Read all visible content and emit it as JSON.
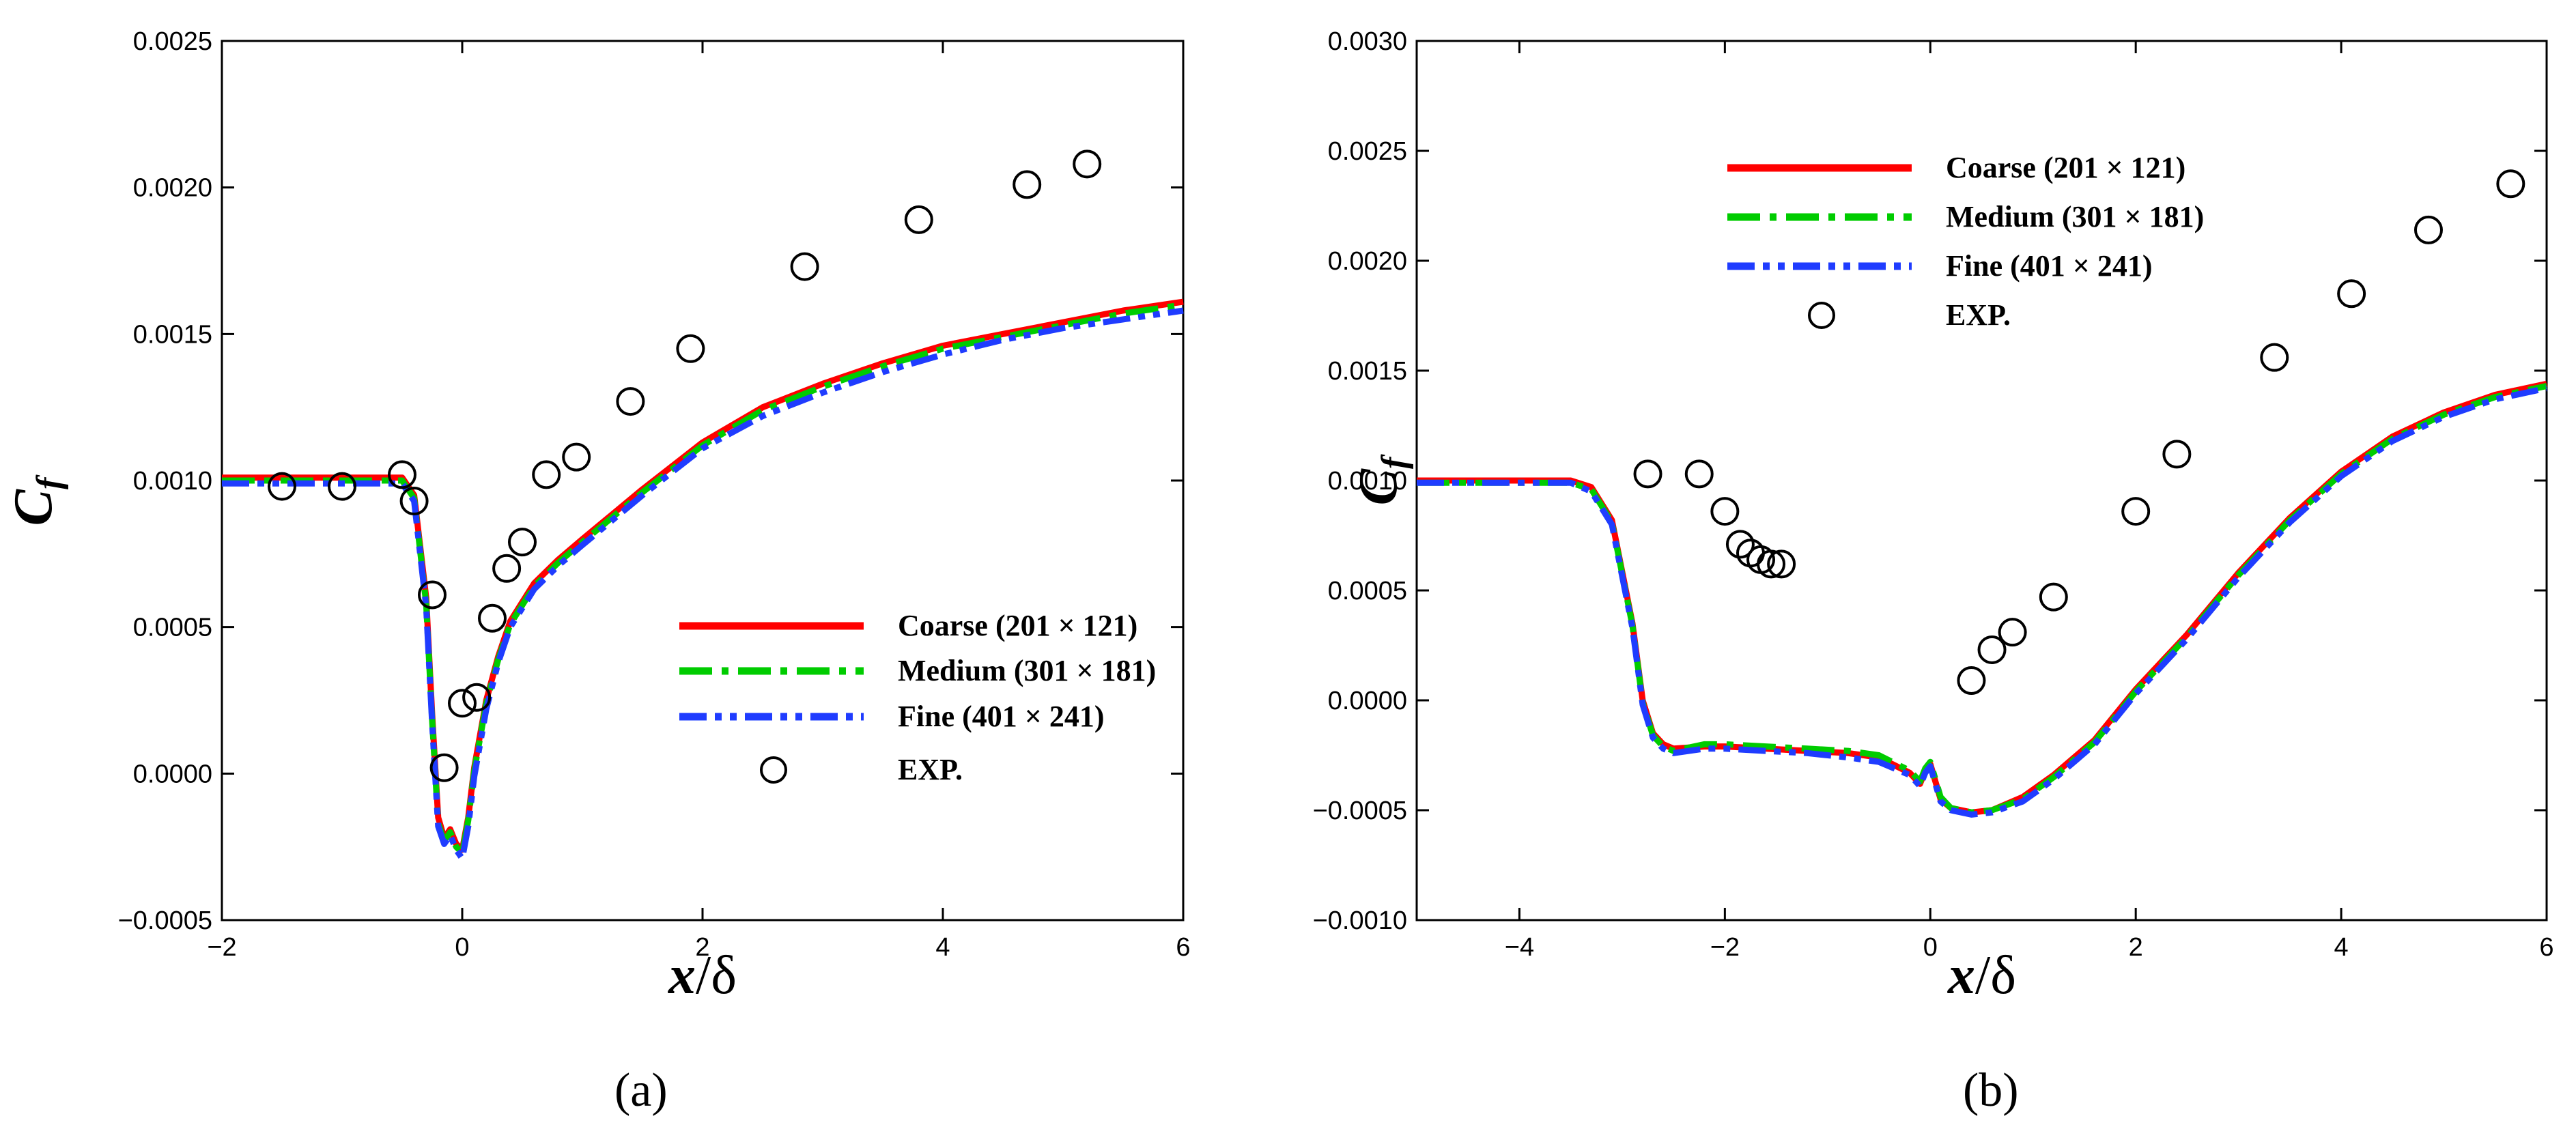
{
  "chart_data": [
    {
      "type": "line",
      "panel_label": "(a)",
      "xlabel": "x/δ",
      "ylabel": "Cf",
      "xlim": [
        -2,
        6
      ],
      "ylim": [
        -0.0005,
        0.0025
      ],
      "xticks": [
        -2,
        0,
        2,
        4,
        6
      ],
      "xtick_labels": [
        "−2",
        "0",
        "2",
        "4",
        "6"
      ],
      "yticks": [
        -0.0005,
        0,
        0.0005,
        0.001,
        0.0015,
        0.002,
        0.0025
      ],
      "ytick_labels": [
        "−0.0005",
        "0.0000",
        "0.0005",
        "0.0010",
        "0.0015",
        "0.0020",
        "0.0025"
      ],
      "legend_position": "center-right",
      "series": [
        {
          "name": "Coarse (201 × 121)",
          "style": "solid",
          "color": "#ff0000",
          "x": [
            -2,
            -0.5,
            -0.4,
            -0.3,
            -0.25,
            -0.2,
            -0.15,
            -0.1,
            -0.05,
            0,
            0.05,
            0.1,
            0.2,
            0.3,
            0.4,
            0.6,
            0.8,
            1.0,
            1.5,
            2.0,
            2.5,
            3.0,
            3.5,
            4.0,
            4.5,
            5.0,
            5.5,
            6.0
          ],
          "y": [
            0.00101,
            0.00101,
            0.00095,
            0.0006,
            0.0002,
            -0.00015,
            -0.00022,
            -0.00019,
            -0.00024,
            -0.00026,
            -0.00015,
            2e-05,
            0.00025,
            0.0004,
            0.00052,
            0.00065,
            0.00073,
            0.0008,
            0.00097,
            0.00113,
            0.00125,
            0.00133,
            0.0014,
            0.00146,
            0.0015,
            0.00154,
            0.00158,
            0.00161
          ]
        },
        {
          "name": "Medium (301 × 181)",
          "style": "dashdot",
          "color": "#00cc00",
          "x": [
            -2,
            -0.5,
            -0.4,
            -0.3,
            -0.25,
            -0.2,
            -0.15,
            -0.1,
            -0.05,
            0,
            0.05,
            0.1,
            0.2,
            0.3,
            0.4,
            0.6,
            0.8,
            1.0,
            1.5,
            2.0,
            2.5,
            3.0,
            3.5,
            4.0,
            4.5,
            5.0,
            5.5,
            6.0
          ],
          "y": [
            0.001,
            0.001,
            0.00094,
            0.00058,
            0.00018,
            -0.00017,
            -0.00023,
            -0.0002,
            -0.00025,
            -0.00027,
            -0.00016,
            1e-05,
            0.00024,
            0.00039,
            0.00051,
            0.00064,
            0.00072,
            0.00079,
            0.00096,
            0.00112,
            0.00124,
            0.00132,
            0.00139,
            0.00145,
            0.00149,
            0.00153,
            0.00157,
            0.0016
          ]
        },
        {
          "name": "Fine (401 × 241)",
          "style": "dashdotdot",
          "color": "#1f3cff",
          "x": [
            -2,
            -0.5,
            -0.4,
            -0.3,
            -0.25,
            -0.2,
            -0.15,
            -0.1,
            -0.05,
            0,
            0.05,
            0.1,
            0.2,
            0.3,
            0.4,
            0.6,
            0.8,
            1.0,
            1.5,
            2.0,
            2.5,
            3.0,
            3.5,
            4.0,
            4.5,
            5.0,
            5.5,
            6.0
          ],
          "y": [
            0.00099,
            0.00099,
            0.00093,
            0.00057,
            0.00017,
            -0.00018,
            -0.00024,
            -0.00021,
            -0.00026,
            -0.00029,
            -0.00018,
            -1e-05,
            0.00022,
            0.00038,
            0.0005,
            0.00063,
            0.00071,
            0.00078,
            0.00095,
            0.00111,
            0.00122,
            0.0013,
            0.00137,
            0.00143,
            0.00148,
            0.00152,
            0.00155,
            0.00158
          ]
        },
        {
          "name": "EXP.",
          "style": "markers",
          "color": "#000000",
          "x": [
            -1.5,
            -1.0,
            -0.5,
            -0.4,
            -0.25,
            -0.15,
            0.0,
            0.12,
            0.25,
            0.37,
            0.5,
            0.7,
            0.95,
            1.4,
            1.9,
            2.85,
            3.8,
            4.7,
            5.2
          ],
          "y": [
            0.00098,
            0.00098,
            0.00102,
            0.00093,
            0.00061,
            2e-05,
            0.00024,
            0.00026,
            0.00053,
            0.0007,
            0.00079,
            0.00102,
            0.00108,
            0.00127,
            0.00145,
            0.00173,
            0.00189,
            0.00201,
            0.00208
          ]
        }
      ]
    },
    {
      "type": "line",
      "panel_label": "(b)",
      "xlabel": "x/δ",
      "ylabel": "Cf",
      "xlim": [
        -5,
        6
      ],
      "ylim": [
        -0.001,
        0.003
      ],
      "xticks": [
        -4,
        -2,
        0,
        2,
        4,
        6
      ],
      "xtick_labels": [
        "−4",
        "−2",
        "0",
        "2",
        "4",
        "6"
      ],
      "yticks": [
        -0.001,
        -0.0005,
        0,
        0.0005,
        0.001,
        0.0015,
        0.002,
        0.0025,
        0.003
      ],
      "ytick_labels": [
        "−0.0010",
        "−0.0005",
        "0.0000",
        "0.0005",
        "0.0010",
        "0.0015",
        "0.0020",
        "0.0025",
        "0.0030"
      ],
      "legend_position": "top-left",
      "series": [
        {
          "name": "Coarse (201 × 121)",
          "style": "solid",
          "color": "#ff0000",
          "x": [
            -5,
            -3.5,
            -3.3,
            -3.1,
            -2.9,
            -2.8,
            -2.7,
            -2.6,
            -2.5,
            -2.2,
            -2.0,
            -1.6,
            -1.2,
            -0.8,
            -0.5,
            -0.2,
            -0.1,
            -0.05,
            0.0,
            0.05,
            0.1,
            0.2,
            0.4,
            0.6,
            0.9,
            1.2,
            1.6,
            2.0,
            2.5,
            3.0,
            3.5,
            4.0,
            4.5,
            5.0,
            5.5,
            6.0
          ],
          "y": [
            0.001,
            0.001,
            0.00097,
            0.00082,
            0.00035,
            0.0,
            -0.00015,
            -0.0002,
            -0.00022,
            -0.00021,
            -0.00021,
            -0.00022,
            -0.00023,
            -0.00024,
            -0.00026,
            -0.00033,
            -0.00038,
            -0.00032,
            -0.00029,
            -0.00037,
            -0.00045,
            -0.00049,
            -0.00051,
            -0.0005,
            -0.00044,
            -0.00034,
            -0.00018,
            5e-05,
            0.0003,
            0.00058,
            0.00083,
            0.00104,
            0.0012,
            0.00131,
            0.00139,
            0.00144
          ]
        },
        {
          "name": "Medium (301 × 181)",
          "style": "dashdot",
          "color": "#00cc00",
          "x": [
            -5,
            -3.5,
            -3.3,
            -3.1,
            -2.9,
            -2.8,
            -2.7,
            -2.6,
            -2.5,
            -2.2,
            -2.0,
            -1.6,
            -1.2,
            -0.8,
            -0.5,
            -0.2,
            -0.1,
            -0.05,
            0.0,
            0.05,
            0.1,
            0.2,
            0.4,
            0.6,
            0.9,
            1.2,
            1.6,
            2.0,
            2.5,
            3.0,
            3.5,
            4.0,
            4.5,
            5.0,
            5.5,
            6.0
          ],
          "y": [
            0.00099,
            0.00099,
            0.00096,
            0.00081,
            0.00034,
            -1e-05,
            -0.00016,
            -0.00021,
            -0.00023,
            -0.0002,
            -0.0002,
            -0.00021,
            -0.00022,
            -0.00023,
            -0.00025,
            -0.00032,
            -0.00037,
            -0.00031,
            -0.00028,
            -0.00036,
            -0.00044,
            -0.00049,
            -0.00051,
            -0.0005,
            -0.00045,
            -0.00035,
            -0.00019,
            4e-05,
            0.00029,
            0.00057,
            0.00082,
            0.00103,
            0.00119,
            0.0013,
            0.00138,
            0.00143
          ]
        },
        {
          "name": "Fine (401 × 241)",
          "style": "dashdotdot",
          "color": "#1f3cff",
          "x": [
            -5,
            -3.5,
            -3.3,
            -3.1,
            -2.9,
            -2.8,
            -2.7,
            -2.6,
            -2.5,
            -2.2,
            -2.0,
            -1.6,
            -1.2,
            -0.8,
            -0.5,
            -0.2,
            -0.1,
            -0.05,
            0.0,
            0.05,
            0.1,
            0.2,
            0.4,
            0.6,
            0.9,
            1.2,
            1.6,
            2.0,
            2.5,
            3.0,
            3.5,
            4.0,
            4.5,
            5.0,
            5.5,
            6.0
          ],
          "y": [
            0.00099,
            0.00099,
            0.00095,
            0.0008,
            0.00033,
            -2e-05,
            -0.00017,
            -0.00022,
            -0.00024,
            -0.00022,
            -0.00022,
            -0.00023,
            -0.00024,
            -0.00026,
            -0.00028,
            -0.00034,
            -0.00039,
            -0.00033,
            -0.0003,
            -0.00038,
            -0.00046,
            -0.0005,
            -0.00052,
            -0.00051,
            -0.00046,
            -0.00036,
            -0.0002,
            3e-05,
            0.00028,
            0.00056,
            0.00081,
            0.00102,
            0.00118,
            0.00129,
            0.00137,
            0.00142
          ]
        },
        {
          "name": "EXP.",
          "style": "markers",
          "color": "#000000",
          "x": [
            -2.75,
            -2.25,
            -2.0,
            -1.85,
            -1.75,
            -1.65,
            -1.55,
            -1.45,
            0.4,
            0.6,
            0.8,
            1.2,
            2.0,
            2.4,
            3.35,
            4.1,
            4.85,
            5.65
          ],
          "y": [
            0.00103,
            0.00103,
            0.00086,
            0.00071,
            0.00067,
            0.00064,
            0.00062,
            0.00062,
            9e-05,
            0.00023,
            0.00031,
            0.00047,
            0.00086,
            0.00112,
            0.00156,
            0.00185,
            0.00214,
            0.00235
          ]
        }
      ]
    }
  ]
}
